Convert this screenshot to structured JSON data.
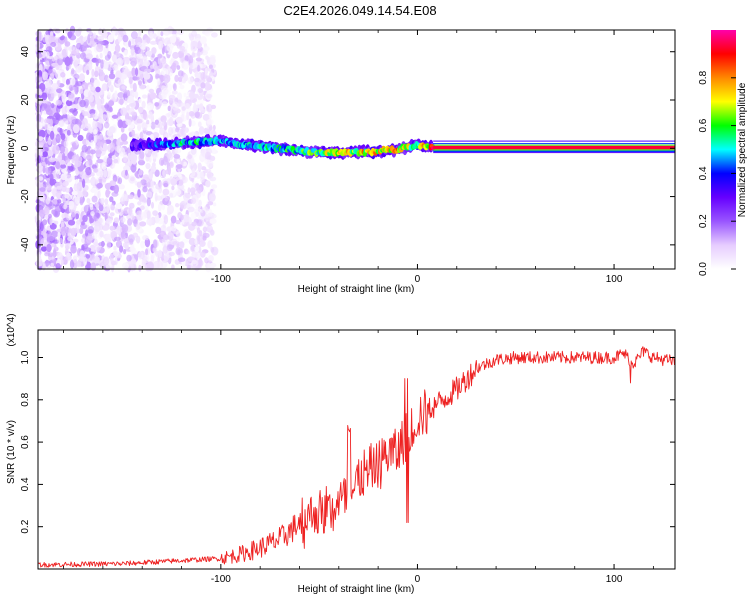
{
  "figure": {
    "title": "C2E4.2026.049.14.54.E08"
  },
  "chart_data": [
    {
      "type": "heatmap",
      "title": "C2E4.2026.049.14.54.E08",
      "xlabel": "Height of straight line (km)",
      "ylabel": "Frequency (Hz)",
      "xlim": [
        -193,
        131
      ],
      "ylim": [
        -50,
        49
      ],
      "xticks": [
        -100,
        0,
        100
      ],
      "xtick_labels": [
        "-100",
        "0",
        "100"
      ],
      "yticks": [
        -40,
        -20,
        0,
        20,
        40
      ],
      "ytick_labels": [
        "-40",
        "-20",
        "0",
        "20",
        "40"
      ],
      "colorbar": {
        "label": "Normalized spectral amplitude",
        "range": [
          0,
          1
        ],
        "ticks": [
          0.0,
          0.2,
          0.4,
          0.6,
          0.8
        ],
        "tick_labels": [
          "0.0",
          "0.2",
          "0.4",
          "0.6",
          "0.8"
        ],
        "colormap": [
          "#ffffff",
          "#e6ccff",
          "#9955ff",
          "#6600ff",
          "#0000ff",
          "#00ffff",
          "#00ff00",
          "#ffff00",
          "#ff8800",
          "#ff0000",
          "#ff00aa"
        ]
      },
      "ridge": {
        "x": [
          -143,
          -130,
          -115,
          -100,
          -88,
          -70,
          -55,
          -40,
          -25,
          -10,
          0,
          5,
          131
        ],
        "frequency": [
          1.5,
          1.5,
          2.5,
          3.0,
          1.5,
          0.0,
          -1.5,
          -1.8,
          -1.5,
          -0.5,
          1.5,
          0.5,
          0.0
        ],
        "amplitude": [
          0.3,
          0.45,
          0.55,
          0.45,
          0.5,
          0.55,
          0.6,
          0.7,
          0.75,
          0.8,
          0.6,
          0.85,
          0.9
        ]
      }
    },
    {
      "type": "line",
      "xlabel": "Height of straight line (km)",
      "ylabel": "SNR (10 * v/v)",
      "y_multiplier": "(x10^4)",
      "xlim": [
        -193,
        131
      ],
      "ylim": [
        0,
        1.13
      ],
      "xticks": [
        -100,
        0,
        100
      ],
      "xtick_labels": [
        "-100",
        "0",
        "100"
      ],
      "yticks": [
        0.2,
        0.4,
        0.6,
        0.8,
        1.0
      ],
      "ytick_labels": [
        "0.2",
        "0.4",
        "0.6",
        "0.8",
        "1.0"
      ],
      "series": [
        {
          "name": "SNR",
          "color": "#ee2222",
          "x": [
            -193,
            -150,
            -120,
            -100,
            -90,
            -80,
            -70,
            -62,
            -55,
            -45,
            -35,
            -30,
            -25,
            -20,
            -15,
            -10,
            -5,
            -2,
            0,
            10,
            20,
            25,
            30,
            40,
            50,
            60,
            70,
            80,
            90,
            100,
            105,
            110,
            115,
            120,
            131
          ],
          "y": [
            0.02,
            0.025,
            0.04,
            0.05,
            0.07,
            0.1,
            0.14,
            0.2,
            0.26,
            0.28,
            0.33,
            0.42,
            0.45,
            0.5,
            0.55,
            0.55,
            0.65,
            0.68,
            0.72,
            0.78,
            0.85,
            0.9,
            0.95,
            0.99,
            1.0,
            1.0,
            1.0,
            1.0,
            1.0,
            1.0,
            1.02,
            0.97,
            1.03,
            1.0,
            0.98
          ]
        }
      ]
    }
  ]
}
